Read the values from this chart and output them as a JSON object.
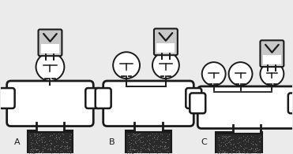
{
  "bg_color": "#ebebeb",
  "line_color": "#1a1a1a",
  "label_A": "A",
  "label_B": "B",
  "label_C": "C",
  "fig_w": 3.71,
  "fig_h": 1.96,
  "dpi": 100
}
